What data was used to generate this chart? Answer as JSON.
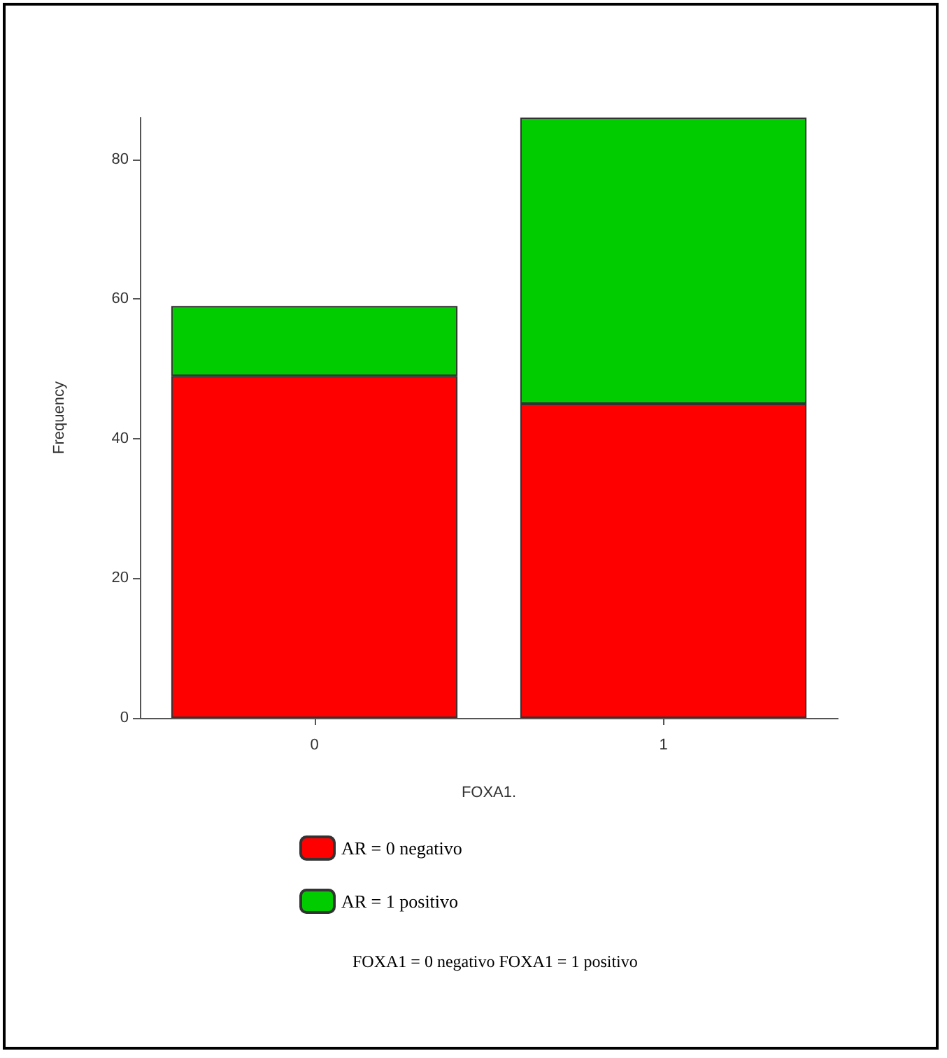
{
  "chart_data": {
    "type": "bar",
    "stacked": true,
    "xlabel": "FOXA1.",
    "ylabel": "Frequency",
    "categories": [
      "0",
      "1"
    ],
    "series": [
      {
        "name": "AR = 0 negativo",
        "color": "#ff0000",
        "values": [
          49,
          45
        ]
      },
      {
        "name": "AR = 1 positivo",
        "color": "#00cc00",
        "values": [
          10,
          41
        ]
      }
    ],
    "ylim": [
      0,
      86
    ],
    "yticks": [
      0,
      20,
      40,
      60,
      80
    ],
    "grid": false,
    "legend": "bottom",
    "annotations": [
      "FOXA1 = 0 negativo FOXA1 = 1 positivo"
    ]
  }
}
